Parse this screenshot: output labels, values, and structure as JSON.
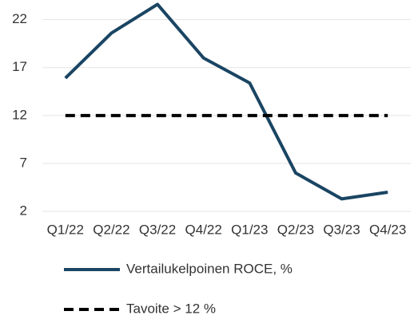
{
  "chart_data": {
    "type": "line",
    "categories": [
      "Q1/22",
      "Q2/22",
      "Q3/22",
      "Q4/22",
      "Q1/23",
      "Q2/23",
      "Q3/23",
      "Q4/23"
    ],
    "series": [
      {
        "name": "Vertailukelpoinen ROCE, %",
        "color": "#1a4563",
        "dashed": false,
        "values": [
          15.9,
          20.6,
          23.6,
          18.0,
          15.4,
          6.0,
          3.3,
          4.0
        ]
      },
      {
        "name": "Tavoite > 12 %",
        "color": "#000000",
        "dashed": true,
        "values": [
          12,
          12,
          12,
          12,
          12,
          12,
          12,
          12
        ]
      }
    ],
    "ylim": [
      2,
      24
    ],
    "yticks": [
      2,
      7,
      12,
      17,
      22
    ],
    "grid": true,
    "legend": "bottom"
  }
}
